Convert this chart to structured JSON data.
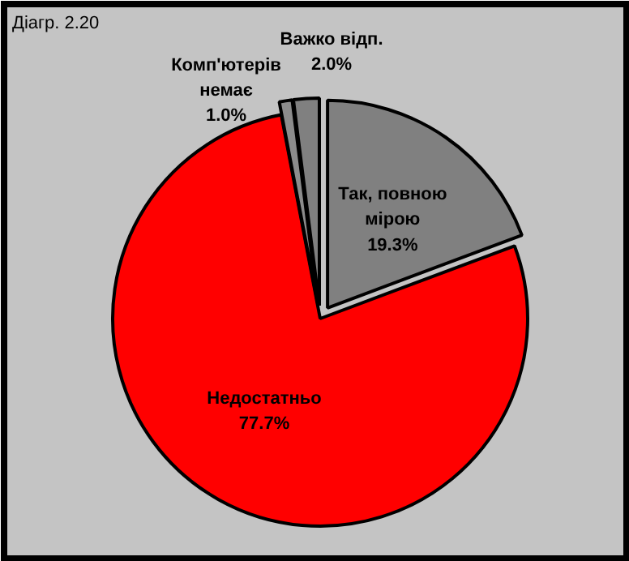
{
  "chart_data": {
    "type": "pie",
    "title": "Діагр. 2.20",
    "categories": [
      "Так, повною мірою",
      "Недостатньо",
      "Комп'ютерів немає",
      "Важко відп."
    ],
    "values": [
      19.3,
      77.7,
      1.0,
      2.0
    ],
    "colors": [
      "#808080",
      "#ff0000",
      "#8c8c8c",
      "#808080"
    ],
    "value_labels": [
      "19.3%",
      "77.7%",
      "1.0%",
      "2.0%"
    ]
  }
}
